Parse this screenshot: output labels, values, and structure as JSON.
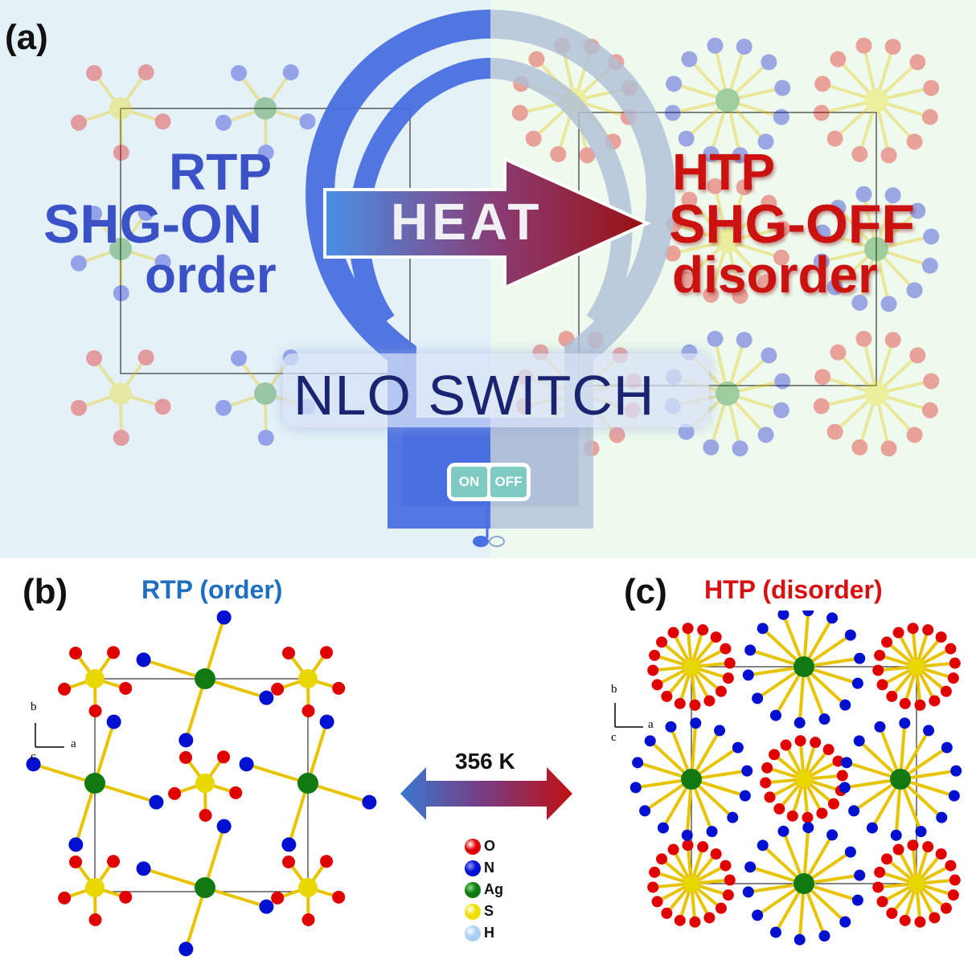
{
  "panel_a": {
    "label": "(a)",
    "left_text": {
      "line1": "RTP",
      "line2": "SHG-ON",
      "line3": "order"
    },
    "right_text": {
      "line1": "HTP",
      "line2": "SHG-OFF",
      "line3": "disorder"
    },
    "arrow_label": "HEAT",
    "banner": "NLO SWITCH",
    "switch": {
      "on": "ON",
      "off": "OFF"
    }
  },
  "panel_b": {
    "label": "(b)",
    "title": "RTP (order)",
    "axes": {
      "b": "b",
      "a": "a",
      "c": "c"
    }
  },
  "panel_c": {
    "label": "(c)",
    "title": "HTP (disorder)",
    "axes": {
      "b": "b",
      "a": "a",
      "c": "c"
    }
  },
  "transition": {
    "label": "356 K"
  },
  "legend": [
    {
      "element": "O",
      "color": "#e00000"
    },
    {
      "element": "N",
      "color": "#0010d0"
    },
    {
      "element": "Ag",
      "color": "#107a10"
    },
    {
      "element": "S",
      "color": "#f0e000"
    },
    {
      "element": "H",
      "color": "#a8d0f0"
    }
  ],
  "colors": {
    "rtp_blue": "#3a52c6",
    "htp_red": "#cc1111",
    "title_blue": "#1f6fc0",
    "bond_yellow": "#e8c400"
  }
}
